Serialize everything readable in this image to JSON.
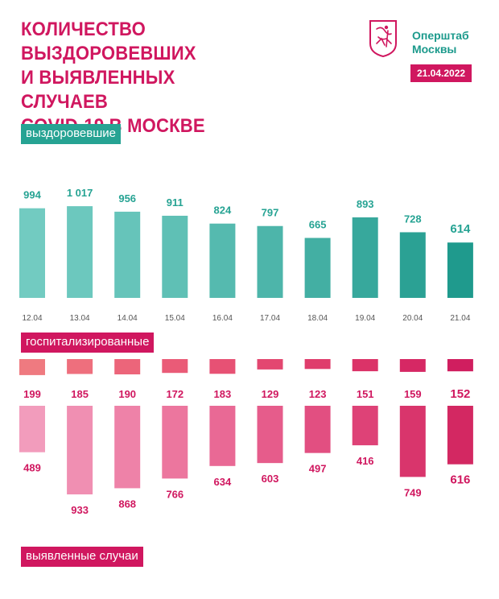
{
  "header": {
    "title_lines": [
      "КОЛИЧЕСТВО ВЫЗДОРОВЕВШИХ",
      "И ВЫЯВЛЕННЫХ СЛУЧАЕВ",
      "COVID-19 В МОСКВЕ"
    ],
    "brand_line1": "Оперштаб",
    "brand_line2": "Москвы",
    "date": "21.04.2022",
    "emblem_icon": "moscow-coat-of-arms-icon"
  },
  "labels": {
    "recovered": "выздоровевшие",
    "hospitalized": "госпитализированные",
    "cases": "выявленные случаи"
  },
  "colors": {
    "accent_pink": "#d0175f",
    "accent_teal": "#26a393"
  },
  "chart_data": [
    {
      "type": "bar",
      "name": "recovered",
      "title": "выздоровевшие",
      "categories": [
        "12.04",
        "13.04",
        "14.04",
        "15.04",
        "16.04",
        "17.04",
        "18.04",
        "19.04",
        "20.04",
        "21.04"
      ],
      "values": [
        994,
        1017,
        956,
        911,
        824,
        797,
        665,
        893,
        728,
        614
      ],
      "value_labels": [
        "994",
        "1 017",
        "956",
        "911",
        "824",
        "797",
        "665",
        "893",
        "728",
        "614"
      ],
      "colors": [
        "#72cbc1",
        "#6cc8be",
        "#66c4ba",
        "#5fc0b5",
        "#55baaf",
        "#4db5aa",
        "#43afa3",
        "#37a89c",
        "#2ba194",
        "#1f9a8d"
      ]
    },
    {
      "type": "bar",
      "name": "hospitalized",
      "title": "госпитализированные",
      "categories": [
        "12.04",
        "13.04",
        "14.04",
        "15.04",
        "16.04",
        "17.04",
        "18.04",
        "19.04",
        "20.04",
        "21.04"
      ],
      "values": [
        199,
        185,
        190,
        172,
        183,
        129,
        123,
        151,
        159,
        152
      ],
      "value_labels": [
        "199",
        "185",
        "190",
        "172",
        "183",
        "129",
        "123",
        "151",
        "159",
        "152"
      ],
      "colors": [
        "#ef7a80",
        "#ee6f7d",
        "#ec657a",
        "#ea5b77",
        "#e75174",
        "#e34770",
        "#df3d6c",
        "#db3368",
        "#d62864",
        "#d01e5f"
      ]
    },
    {
      "type": "bar",
      "name": "cases",
      "title": "выявленные случаи",
      "categories": [
        "12.04",
        "13.04",
        "14.04",
        "15.04",
        "16.04",
        "17.04",
        "18.04",
        "19.04",
        "20.04",
        "21.04"
      ],
      "values": [
        489,
        933,
        868,
        766,
        634,
        603,
        497,
        416,
        749,
        616
      ],
      "value_labels": [
        "489",
        "933",
        "868",
        "766",
        "634",
        "603",
        "497",
        "416",
        "749",
        "616"
      ],
      "colors": [
        "#f29cbc",
        "#f08fb2",
        "#ee82a8",
        "#ec769e",
        "#e96995",
        "#e65c8b",
        "#e24f81",
        "#de4277",
        "#d9356c",
        "#d32862"
      ]
    }
  ]
}
